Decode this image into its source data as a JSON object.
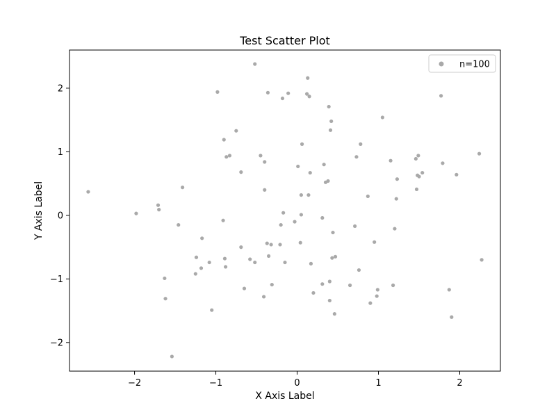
{
  "colors": {
    "marker": "#a9a9a9",
    "axis": "#000000",
    "background": "#ffffff",
    "legend_border": "#cccccc"
  },
  "chart_data": {
    "type": "scatter",
    "title": "Test Scatter Plot",
    "xlabel": "X Axis Label",
    "ylabel": "Y Axis Label",
    "xlim": [
      -2.8,
      2.5
    ],
    "ylim": [
      -2.45,
      2.6
    ],
    "xticks": [
      -2,
      -1,
      0,
      1,
      2
    ],
    "yticks": [
      -2,
      -1,
      0,
      1,
      2
    ],
    "xtick_labels": [
      "−2",
      "−1",
      "0",
      "1",
      "2"
    ],
    "ytick_labels": [
      "−2",
      "−1",
      "0",
      "1",
      "2"
    ],
    "grid": false,
    "legend": {
      "position": "upper-right",
      "entries": [
        "n=100"
      ]
    },
    "series": [
      {
        "name": "n=100",
        "x": [
          -2.57,
          -1.98,
          -1.7,
          -1.71,
          -1.41,
          -1.46,
          -1.63,
          -1.62,
          -1.54,
          -1.24,
          -1.25,
          -1.17,
          -1.18,
          -1.08,
          -1.05,
          -0.98,
          -0.91,
          -0.9,
          -0.89,
          -0.88,
          -0.87,
          -0.83,
          -0.75,
          -0.69,
          -0.69,
          -0.65,
          -0.58,
          -0.52,
          -0.52,
          -0.45,
          -0.41,
          -0.4,
          -0.4,
          -0.37,
          -0.36,
          -0.35,
          -0.32,
          -0.31,
          -0.21,
          -0.2,
          -0.18,
          -0.17,
          -0.15,
          -0.11,
          -0.03,
          0.01,
          0.04,
          0.05,
          0.05,
          0.06,
          0.12,
          0.13,
          0.14,
          0.15,
          0.16,
          0.17,
          0.2,
          0.31,
          0.31,
          0.33,
          0.35,
          0.38,
          0.39,
          0.4,
          0.4,
          0.41,
          0.42,
          0.43,
          0.44,
          0.46,
          0.47,
          0.65,
          0.71,
          0.73,
          0.76,
          0.78,
          0.87,
          0.9,
          0.95,
          0.98,
          0.99,
          1.05,
          1.15,
          1.18,
          1.2,
          1.22,
          1.23,
          1.46,
          1.47,
          1.48,
          1.49,
          1.54,
          1.77,
          1.79,
          1.87,
          1.9,
          1.96,
          2.24,
          2.27,
          1.5
        ],
        "y": [
          0.37,
          0.03,
          0.09,
          0.16,
          0.44,
          -0.15,
          -0.99,
          -1.31,
          -2.22,
          -0.66,
          -0.92,
          -0.36,
          -0.83,
          -0.74,
          -1.49,
          1.94,
          -0.08,
          1.19,
          -0.68,
          -0.81,
          0.92,
          0.94,
          1.33,
          0.68,
          -0.5,
          -1.15,
          -0.69,
          -0.74,
          2.38,
          0.94,
          -1.28,
          0.84,
          0.4,
          -0.44,
          1.93,
          -0.64,
          -0.46,
          -1.09,
          -0.46,
          -0.15,
          1.84,
          0.04,
          -0.74,
          1.92,
          -0.1,
          0.77,
          -0.43,
          0.01,
          0.32,
          1.12,
          1.91,
          2.16,
          0.32,
          1.87,
          0.67,
          -0.76,
          -1.22,
          -0.04,
          -1.08,
          0.8,
          0.52,
          0.54,
          1.71,
          -1.34,
          -1.04,
          1.34,
          1.48,
          -0.67,
          -0.27,
          -1.55,
          -0.65,
          -1.1,
          -0.17,
          0.92,
          -0.86,
          1.12,
          0.3,
          -1.38,
          -0.42,
          -1.27,
          -1.17,
          1.54,
          0.86,
          -1.1,
          -0.21,
          0.26,
          0.57,
          0.89,
          0.41,
          0.63,
          0.94,
          0.67,
          1.88,
          0.82,
          -1.17,
          -1.6,
          0.64,
          0.97,
          -0.7,
          0.61
        ]
      }
    ]
  }
}
